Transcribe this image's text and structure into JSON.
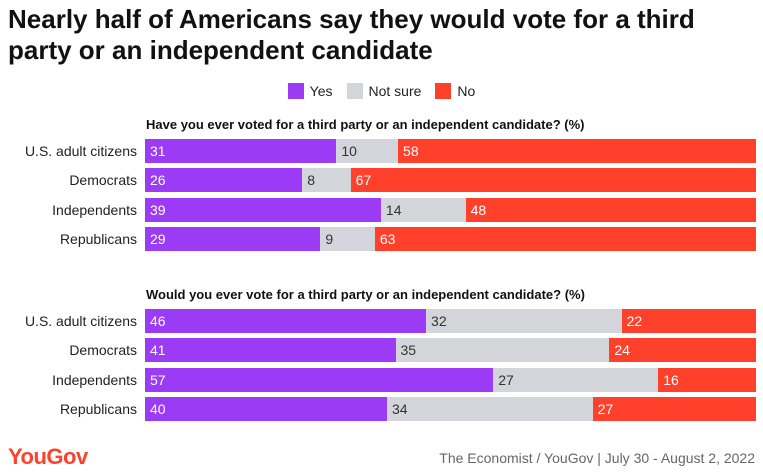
{
  "title": "Nearly half of Americans say they would vote for a third party or an independent candidate",
  "legend": [
    {
      "label": "Yes",
      "color": "#9b3bf5"
    },
    {
      "label": "Not sure",
      "color": "#d3d5da"
    },
    {
      "label": "No",
      "color": "#ff412c"
    }
  ],
  "footer": {
    "logo": "YouGov",
    "source": "The Economist / YouGov | July 30 - August 2, 2022"
  },
  "chart_data": [
    {
      "type": "bar",
      "stacked": true,
      "orientation": "horizontal",
      "title": "Have you ever voted for a third party or an independent candidate? (%)",
      "categories": [
        "U.S. adult citizens",
        "Democrats",
        "Independents",
        "Republicans"
      ],
      "series": [
        {
          "name": "Yes",
          "values": [
            31,
            26,
            39,
            29
          ],
          "color": "#9b3bf5"
        },
        {
          "name": "Not sure",
          "values": [
            10,
            8,
            14,
            9
          ],
          "color": "#d3d5da"
        },
        {
          "name": "No",
          "values": [
            58,
            67,
            48,
            63
          ],
          "color": "#ff412c"
        }
      ],
      "xlim": [
        0,
        100
      ]
    },
    {
      "type": "bar",
      "stacked": true,
      "orientation": "horizontal",
      "title": "Would you ever vote for a third party or an independent candidate? (%)",
      "categories": [
        "U.S. adult citizens",
        "Democrats",
        "Independents",
        "Republicans"
      ],
      "series": [
        {
          "name": "Yes",
          "values": [
            46,
            41,
            57,
            40
          ],
          "color": "#9b3bf5"
        },
        {
          "name": "Not sure",
          "values": [
            32,
            35,
            27,
            34
          ],
          "color": "#d3d5da"
        },
        {
          "name": "No",
          "values": [
            22,
            24,
            16,
            27
          ],
          "color": "#ff412c"
        }
      ],
      "xlim": [
        0,
        100
      ]
    }
  ]
}
